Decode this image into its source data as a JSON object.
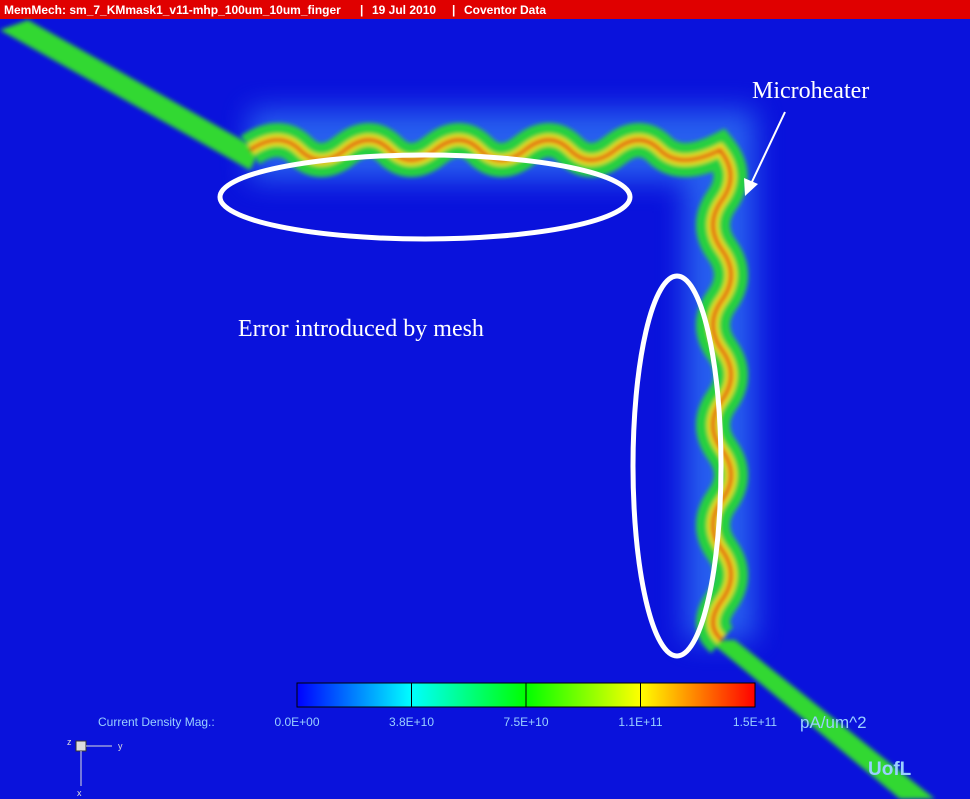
{
  "header": {
    "title": "MemMech: sm_7_KMmask1_v11-mhp_100um_10um_finger",
    "date": "19 Jul 2010",
    "source": "Coventor Data"
  },
  "annotations": {
    "microheater": "Microheater",
    "mesh_error": "Error introduced by mesh"
  },
  "legend": {
    "label": "Current Density Mag.:",
    "ticks": [
      "0.0E+00",
      "3.8E+10",
      "7.5E+10",
      "1.1E+11",
      "1.5E+11"
    ],
    "unit": "pA/um^2"
  },
  "triad": {
    "z": "z",
    "y": "y",
    "x": "x"
  },
  "logo": "UofL"
}
